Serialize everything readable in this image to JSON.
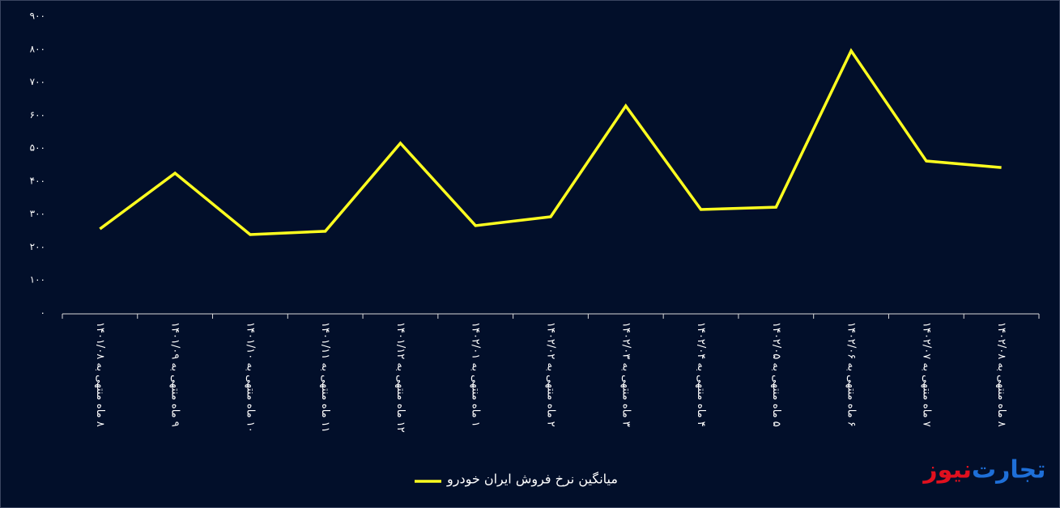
{
  "chart_data": {
    "type": "line",
    "categories": [
      "۸ ماه منتهی به ۱۴۰۱/۰۸",
      "۹ ماه منتهی به ۱۴۰۱/۰۹",
      "۱۰ ماه منتهی به ۱۴۰۱/۱۰",
      "۱۱ ماه منتهی به ۱۴۰۱/۱۱",
      "۱۲ ماه منتهی به ۱۴۰۱/۱۲",
      "۱ ماه منتهی به ۱۴۰۲/۰۱",
      "۲ ماه منتهی به ۱۴۰۲/۰۲",
      "۳ ماه منتهی به ۱۴۰۲/۰۳",
      "۴ ماه منتهی به ۱۴۰۲/۰۴",
      "۵ ماه منتهی به ۱۴۰۲/۰۵",
      "۶ ماه منتهی به ۱۴۰۲/۰۶",
      "۷ ماه منتهی به ۱۴۰۲/۰۷",
      "۸ ماه منتهی به ۱۴۰۲/۰۸"
    ],
    "series": [
      {
        "name": "میانگین نرخ فروش ایران خودرو",
        "color": "#ffff1f",
        "values": [
          255,
          424,
          238,
          248,
          515,
          265,
          292,
          628,
          314,
          321,
          795,
          461,
          441
        ]
      }
    ],
    "ylim": [
      0,
      900
    ],
    "yticks": [
      {
        "value": 0,
        "label": "۰"
      },
      {
        "value": 100,
        "label": "۱۰۰"
      },
      {
        "value": 200,
        "label": "۲۰۰"
      },
      {
        "value": 300,
        "label": "۳۰۰"
      },
      {
        "value": 400,
        "label": "۴۰۰"
      },
      {
        "value": 500,
        "label": "۵۰۰"
      },
      {
        "value": 600,
        "label": "۶۰۰"
      },
      {
        "value": 700,
        "label": "۷۰۰"
      },
      {
        "value": 800,
        "label": "۸۰۰"
      },
      {
        "value": 900,
        "label": "۹۰۰"
      }
    ],
    "grid": false,
    "legend": "bottom"
  },
  "logo": {
    "first": "تجارت",
    "second": "نیوز"
  }
}
